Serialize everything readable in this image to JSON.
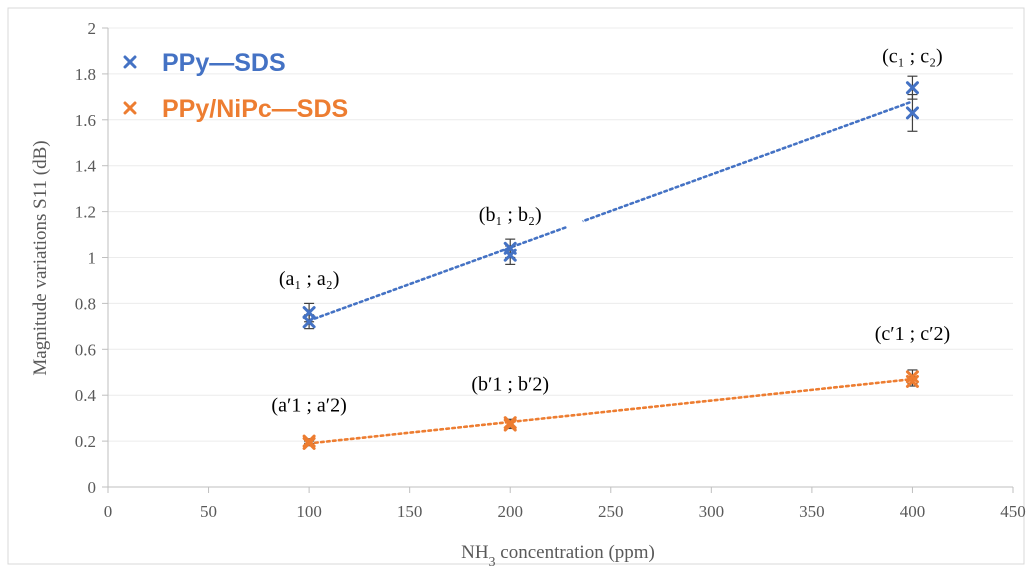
{
  "chart_data": {
    "type": "scatter",
    "title": "",
    "xlabel_main": "NH",
    "xlabel_sub": "3",
    "xlabel_rest": " concentration (ppm)",
    "ylabel": "Magnitude variations S11 (dB)",
    "xlim": [
      0,
      450
    ],
    "ylim": [
      0,
      2
    ],
    "x_ticks": [
      "0",
      "50",
      "100",
      "150",
      "200",
      "250",
      "300",
      "350",
      "400",
      "450"
    ],
    "y_ticks": [
      "0",
      "0.2",
      "0.4",
      "0.6",
      "0.8",
      "1",
      "1.2",
      "1.4",
      "1.6",
      "1.8",
      "2"
    ],
    "x_tick_values": [
      0,
      50,
      100,
      150,
      200,
      250,
      300,
      350,
      400,
      450
    ],
    "y_tick_values": [
      0,
      0.2,
      0.4,
      0.6,
      0.8,
      1,
      1.2,
      1.4,
      1.6,
      1.8,
      2
    ],
    "legend_position": "top-left",
    "series": [
      {
        "name": "PPy—SDS",
        "color": "#4472C4",
        "points": [
          {
            "x": 100,
            "y": 0.76,
            "err": 0.04
          },
          {
            "x": 100,
            "y": 0.72,
            "err": 0.03
          },
          {
            "x": 200,
            "y": 1.04,
            "err": 0.04
          },
          {
            "x": 200,
            "y": 1.01,
            "err": 0.04
          },
          {
            "x": 400,
            "y": 1.74,
            "err": 0.05
          },
          {
            "x": 400,
            "y": 1.63,
            "err": 0.08
          }
        ],
        "trendline": {
          "x": [
            100,
            400
          ],
          "y": [
            0.725,
            1.68
          ]
        }
      },
      {
        "name": "PPy/NiPc—SDS",
        "color": "#ED7D31",
        "points": [
          {
            "x": 100,
            "y": 0.2,
            "err": 0.01
          },
          {
            "x": 100,
            "y": 0.19,
            "err": 0.01
          },
          {
            "x": 200,
            "y": 0.28,
            "err": 0.015
          },
          {
            "x": 200,
            "y": 0.27,
            "err": 0.015
          },
          {
            "x": 400,
            "y": 0.48,
            "err": 0.03
          },
          {
            "x": 400,
            "y": 0.46,
            "err": 0.02
          }
        ],
        "trendline": {
          "x": [
            100,
            400
          ],
          "y": [
            0.19,
            0.47
          ]
        }
      }
    ],
    "annotations": [
      {
        "text": "(a₁ ; a₂)",
        "x": 100,
        "y": 0.88
      },
      {
        "text": "(b₁ ; b₂)",
        "x": 200,
        "y": 1.16
      },
      {
        "text": "(c₁ ; c₂)",
        "x": 400,
        "y": 1.85
      },
      {
        "text": "(a′1 ; a′2)",
        "x": 100,
        "y": 0.33
      },
      {
        "text": "(b′1 ; b′2)",
        "x": 200,
        "y": 0.42
      },
      {
        "text": "(c′1 ; c′2)",
        "x": 400,
        "y": 0.64
      }
    ]
  }
}
